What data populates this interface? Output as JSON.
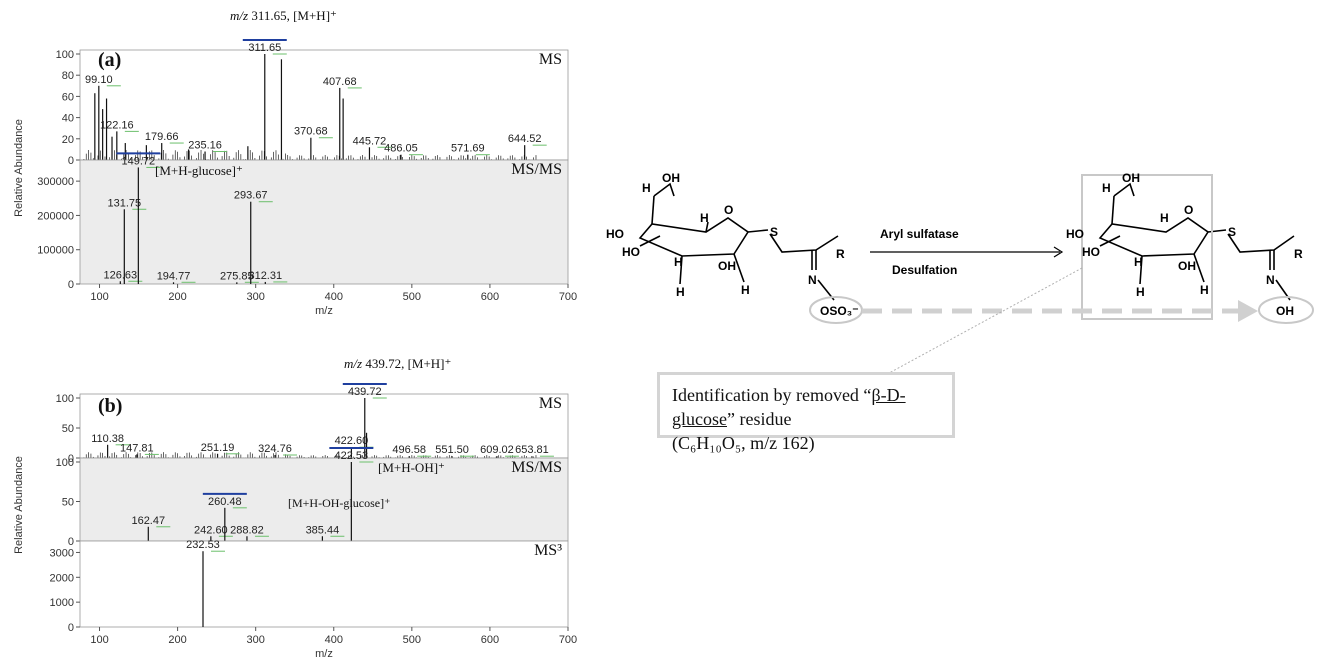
{
  "chart_data": [
    {
      "panel": "(a)",
      "type": "bar",
      "layer": "MS",
      "label": "MS",
      "ylabel": "Relative Abundance",
      "ylim": [
        0,
        100
      ],
      "yticks": [
        "0",
        "20",
        "40",
        "60",
        "80",
        "100"
      ],
      "precursor": {
        "prefix": "m/z",
        "text": " 311.65, [M+H]⁺"
      },
      "peaks": [
        {
          "x": 94,
          "y": 63
        },
        {
          "x": 99.1,
          "y": 70,
          "label": "99.10"
        },
        {
          "x": 104,
          "y": 48
        },
        {
          "x": 109,
          "y": 58
        },
        {
          "x": 116,
          "y": 22
        },
        {
          "x": 122.16,
          "y": 27,
          "label": "122.16"
        },
        {
          "x": 133,
          "y": 16
        },
        {
          "x": 160,
          "y": 14
        },
        {
          "x": 179.66,
          "y": 16,
          "label": "179.66"
        },
        {
          "x": 214,
          "y": 10
        },
        {
          "x": 235.16,
          "y": 8,
          "label": "235.16"
        },
        {
          "x": 290,
          "y": 13
        },
        {
          "x": 311.65,
          "y": 100,
          "label": "311.65",
          "bar": true
        },
        {
          "x": 333,
          "y": 95
        },
        {
          "x": 370.68,
          "y": 21,
          "label": "370.68"
        },
        {
          "x": 407.68,
          "y": 68,
          "label": "407.68"
        },
        {
          "x": 412,
          "y": 58
        },
        {
          "x": 445.72,
          "y": 12,
          "label": "445.72"
        },
        {
          "x": 486.05,
          "y": 5,
          "label": "486.05"
        },
        {
          "x": 571.69,
          "y": 5,
          "label": "571.69"
        },
        {
          "x": 644.52,
          "y": 14,
          "label": "644.52"
        }
      ]
    },
    {
      "panel": "(a)",
      "type": "bar",
      "layer": "MS/MS",
      "label": "MS/MS",
      "ylim": [
        0,
        350000
      ],
      "yticks": [
        "0",
        "100000",
        "200000",
        "300000"
      ],
      "xlabel": "m/z",
      "xlim": [
        75,
        700
      ],
      "xticks": [
        "100",
        "200",
        "300",
        "400",
        "500",
        "600",
        "700"
      ],
      "precursor": {
        "text": "[M+H-glucose]⁺"
      },
      "peaks": [
        {
          "x": 126.63,
          "y": 8000,
          "label": "126.63"
        },
        {
          "x": 131.75,
          "y": 218000,
          "label": "131.75"
        },
        {
          "x": 149.72,
          "y": 340000,
          "label": "149.72",
          "bar": true
        },
        {
          "x": 194.77,
          "y": 5000,
          "label": "194.77"
        },
        {
          "x": 275.85,
          "y": 5000,
          "label": "275.85"
        },
        {
          "x": 293.67,
          "y": 240000,
          "label": "293.67"
        },
        {
          "x": 312.31,
          "y": 6000,
          "label": "312.31"
        }
      ]
    },
    {
      "panel": "(b)",
      "type": "bar",
      "layer": "MS",
      "label": "MS",
      "ylabel": "Relative Abundance",
      "ylim": [
        0,
        100
      ],
      "yticks": [
        "0",
        "50",
        "100"
      ],
      "precursor": {
        "prefix": "m/z",
        "text": " 439.72, [M+H]⁺"
      },
      "peaks": [
        {
          "x": 110.38,
          "y": 22,
          "label": "110.38"
        },
        {
          "x": 147.81,
          "y": 6,
          "label": "147.81"
        },
        {
          "x": 251.19,
          "y": 7,
          "label": "251.19"
        },
        {
          "x": 324.76,
          "y": 5,
          "label": "324.76"
        },
        {
          "x": 422.6,
          "y": 18,
          "label": "422.60"
        },
        {
          "x": 439.72,
          "y": 100,
          "label": "439.72",
          "bar": true
        },
        {
          "x": 442,
          "y": 42
        },
        {
          "x": 496.58,
          "y": 3,
          "label": "496.58"
        },
        {
          "x": 551.5,
          "y": 3,
          "label": "551.50"
        },
        {
          "x": 609.02,
          "y": 3,
          "label": "609.02"
        },
        {
          "x": 653.81,
          "y": 3,
          "label": "653.81"
        }
      ]
    },
    {
      "panel": "(b)",
      "type": "bar",
      "layer": "MS/MS",
      "label": "MS/MS",
      "ylim": [
        0,
        100
      ],
      "yticks": [
        "0",
        "50",
        "100"
      ],
      "precursor": {
        "text": "[M+H-OH]⁺"
      },
      "peaks": [
        {
          "x": 162.47,
          "y": 18,
          "label": "162.47"
        },
        {
          "x": 242.6,
          "y": 6,
          "label": "242.60"
        },
        {
          "x": 260.48,
          "y": 42,
          "label": "260.48",
          "bar": true
        },
        {
          "x": 288.82,
          "y": 6,
          "label": "288.82"
        },
        {
          "x": 385.44,
          "y": 6,
          "label": "385.44"
        },
        {
          "x": 422.53,
          "y": 100,
          "label": "422.53",
          "bar": true
        }
      ],
      "fragment_label": "[M+H-OH-glucose]⁺"
    },
    {
      "panel": "(b)",
      "type": "bar",
      "layer": "MS3",
      "label": "MS³",
      "ylim": [
        0,
        3300
      ],
      "yticks": [
        "0",
        "1000",
        "2000",
        "3000"
      ],
      "xlabel": "m/z",
      "xlim": [
        75,
        700
      ],
      "xticks": [
        "100",
        "200",
        "300",
        "400",
        "500",
        "600",
        "700"
      ],
      "peaks": [
        {
          "x": 232.53,
          "y": 3050,
          "label": "232.53"
        }
      ]
    }
  ],
  "scheme": {
    "enzyme": "Aryl sulfatase",
    "process": "Desulfation",
    "atoms": {
      "H": "H",
      "OH": "OH",
      "HO": "HO",
      "O": "O",
      "S": "S",
      "R": "R",
      "N": "N"
    },
    "left_group": "OSO₃⁻",
    "right_group": "OH"
  },
  "identification": {
    "line1_pre": "Identification by removed “",
    "line1_u": "β-D-glucose",
    "line1_post": "” residue",
    "line2": "(C₆H₁₀O₅, m/z 162)"
  }
}
